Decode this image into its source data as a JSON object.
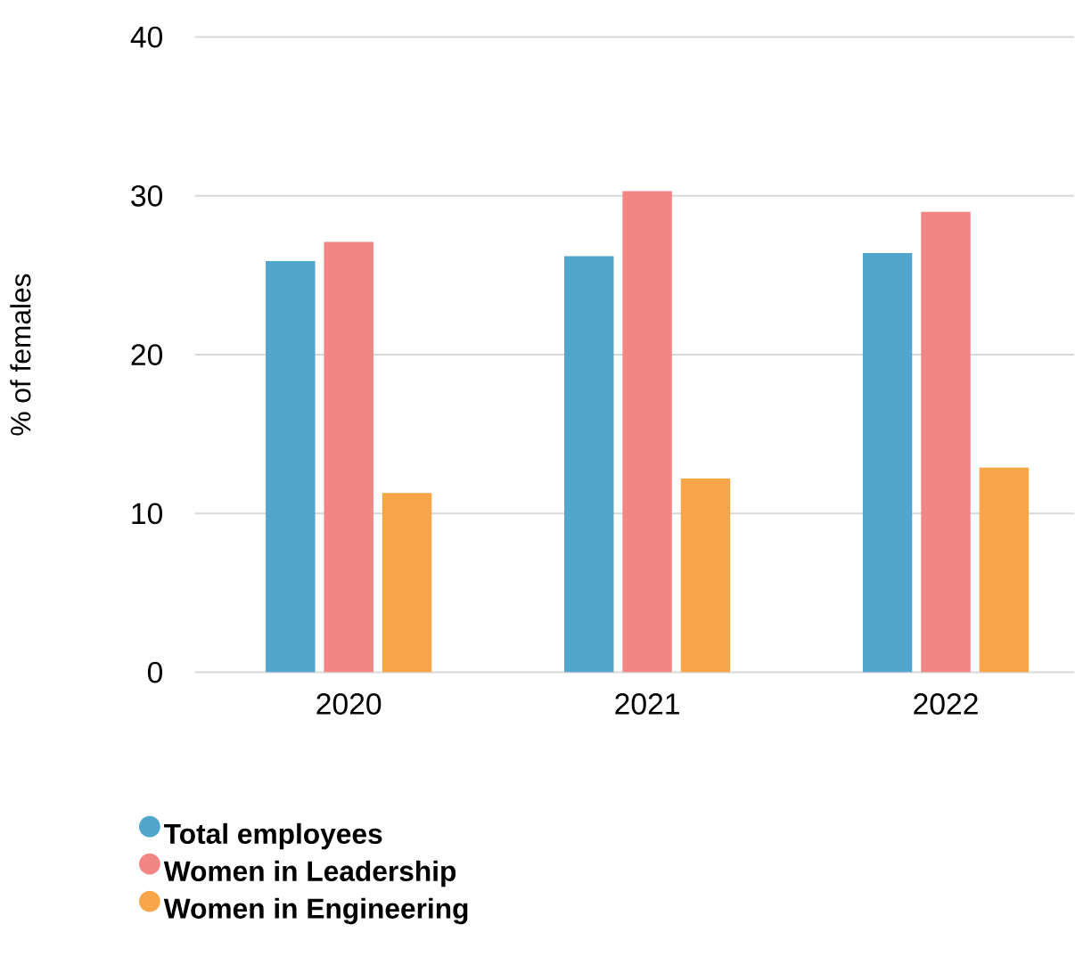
{
  "chart_data": {
    "type": "bar",
    "ylabel": "% of females",
    "categories": [
      "2020",
      "2021",
      "2022"
    ],
    "series": [
      {
        "name": "Total employees",
        "color": "#52a5cc",
        "values": [
          25.9,
          26.2,
          26.4
        ]
      },
      {
        "name": "Women in Leadership",
        "color": "#f38585",
        "values": [
          27.1,
          30.3,
          29.0
        ]
      },
      {
        "name": "Women in Engineering",
        "color": "#f9a54a",
        "values": [
          11.3,
          12.2,
          12.9
        ]
      }
    ],
    "ylim": [
      0,
      40
    ],
    "yticks": [
      0,
      10,
      20,
      30,
      40
    ],
    "grid": "y",
    "legend": "bottom",
    "marker": "circle"
  }
}
